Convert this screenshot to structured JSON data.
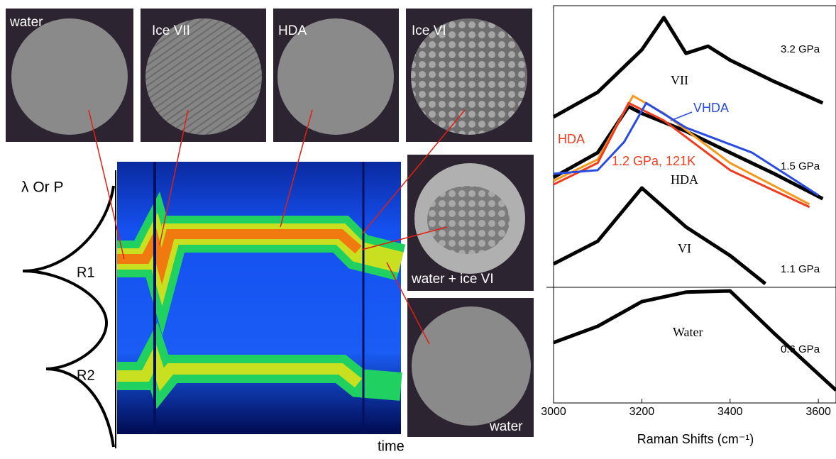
{
  "panels": [
    {
      "label": "water"
    },
    {
      "label": "Ice VII"
    },
    {
      "label": "HDA"
    },
    {
      "label": "Ice VI"
    },
    {
      "label": "water + ice VI"
    },
    {
      "label": "water"
    }
  ],
  "heatmap": {
    "y_label": "λ Or P",
    "peaks": [
      "R1",
      "R2"
    ],
    "x_label": "time"
  },
  "chart_data": {
    "type": "line",
    "x_label": "Raman Shifts (cm⁻¹)",
    "xlim": [
      3000,
      3640
    ],
    "xticks": [
      3000,
      3200,
      3400,
      3600
    ],
    "ylim": [
      0,
      100
    ],
    "series": [
      {
        "color": "#000000",
        "x": [
          3000,
          3100,
          3200,
          3250,
          3300,
          3350,
          3400,
          3500,
          3610
        ],
        "values": [
          72.0,
          78.2,
          88.9,
          97.0,
          88.0,
          89.8,
          86.3,
          80.9,
          75.5
        ]
      },
      {
        "color": "#000000",
        "x": [
          3000,
          3100,
          3170,
          3200,
          3300,
          3400,
          3500,
          3610
        ],
        "values": [
          56.8,
          63.0,
          74.6,
          72.9,
          68.4,
          63.0,
          57.7,
          51.4
        ]
      },
      {
        "color": "#f39a1e",
        "x": [
          3000,
          3100,
          3180,
          3250,
          3400,
          3580
        ],
        "values": [
          55.9,
          61.3,
          77.3,
          72.9,
          60.4,
          50.0
        ]
      },
      {
        "color": "#f03c1e",
        "x": [
          3000,
          3100,
          3170,
          3250,
          3400,
          3580
        ],
        "values": [
          55.0,
          60.4,
          75.5,
          71.1,
          58.6,
          49.3
        ]
      },
      {
        "color": "#2a4be0",
        "x": [
          3000,
          3100,
          3160,
          3210,
          3300,
          3450,
          3600
        ],
        "values": [
          57.7,
          58.6,
          65.7,
          75.5,
          69.3,
          63.0,
          52.3
        ]
      },
      {
        "color": "#000000",
        "x": [
          3000,
          3100,
          3200,
          3300,
          3400,
          3480
        ],
        "values": [
          35.0,
          40.7,
          54.1,
          44.3,
          37.1,
          30.0
        ]
      },
      {
        "color": "#000000",
        "x": [
          3000,
          3100,
          3200,
          3300,
          3400,
          3500,
          3640
        ],
        "values": [
          15.2,
          19.3,
          25.5,
          27.9,
          28.2,
          17.5,
          3.2
        ]
      }
    ],
    "pressures": [
      "3.2 GPa",
      "1.5 GPa",
      "1.1 GPa",
      "0.6 GPa"
    ],
    "phases": [
      "VII",
      "HDA",
      "VI",
      "Water"
    ],
    "curve_labels": [
      {
        "text": "HDA",
        "color": "#f03c1e"
      },
      {
        "text": "VHDA",
        "color": "#2a4be0"
      },
      {
        "text": "1.2 GPa, 121K",
        "color": "#f03c1e"
      }
    ]
  }
}
